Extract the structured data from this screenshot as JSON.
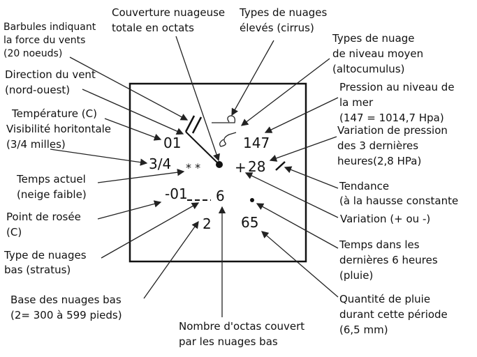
{
  "station": {
    "temperature": "01",
    "pressure": "147",
    "visibility": "3/4",
    "present_weather": "* *",
    "pressure_sign": "+",
    "pressure_change": "28",
    "dew_point": "-01",
    "low_cloud_octas": "6",
    "low_cloud_base": "2",
    "precipitation": "65"
  },
  "labels": {
    "cloud_cover": [
      "Couverture nuageuse",
      "totale en octats"
    ],
    "high_clouds": [
      "Types de nuages",
      "élevés (cirrus)"
    ],
    "barbs": [
      "Barbules indiquant",
      "la force du vents",
      "(20 noeuds)"
    ],
    "mid_clouds": [
      "Types de nuage",
      "de niveau moyen",
      "(altocumulus)"
    ],
    "wind_direction": [
      "Direction du vent",
      "(nord-ouest)"
    ],
    "sea_pressure": [
      "Pression au niveau de",
      "la mer",
      "(147 = 1014,7 Hpa)"
    ],
    "temperature": [
      "Température (C)"
    ],
    "visibility": [
      "Visibilité horitontale",
      "(3/4 milles)"
    ],
    "pressure_change": [
      "Variation de pression",
      "des 3 dernières",
      "heures(2,8 HPa)"
    ],
    "present_weather": [
      "Temps actuel",
      "(neige faible)"
    ],
    "tendency": [
      "Tendance",
      "(à la hausse constante"
    ],
    "dew_point": [
      "Point de rosée",
      "(C)"
    ],
    "variation": [
      "Variation (+ ou -)"
    ],
    "low_cloud_type": [
      "Type de nuages",
      "bas (stratus)"
    ],
    "past_weather": [
      "Temps dans les",
      "dernières 6 heures",
      "(pluie)"
    ],
    "low_cloud_base": [
      "Base des nuages bas",
      "(2= 300 à 599 pieds)"
    ],
    "rain_amount": [
      "Quantité de pluie",
      "durant cette période",
      "(6,5 mm)"
    ],
    "low_cloud_octas": [
      "Nombre d'octas couvert",
      "par les nuages bas"
    ]
  }
}
